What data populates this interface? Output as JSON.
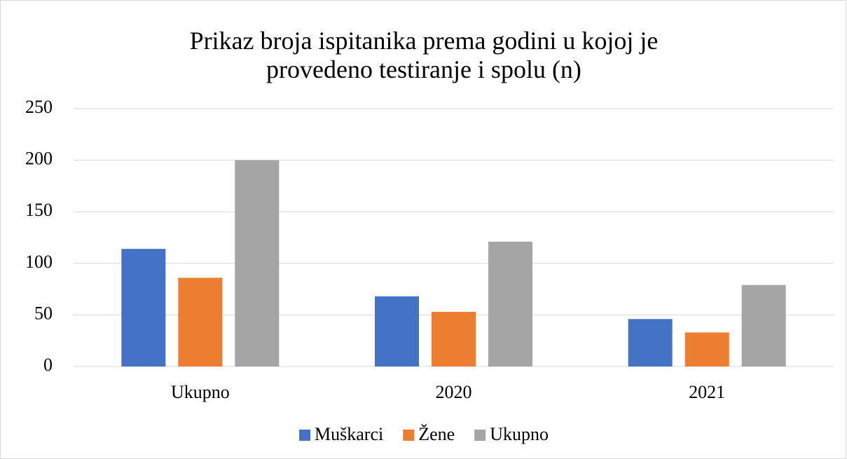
{
  "chart_data": {
    "type": "bar",
    "title": "Prikaz broja ispitanika prema godini u kojoj je provedeno testiranje i spolu (n)",
    "categories": [
      "Ukupno",
      "2020",
      "2021"
    ],
    "series": [
      {
        "name": "Muškarci",
        "color": "#4472c4",
        "values": [
          114,
          68,
          46
        ]
      },
      {
        "name": "Žene",
        "color": "#ed7d31",
        "values": [
          86,
          53,
          33
        ]
      },
      {
        "name": "Ukupno",
        "color": "#a5a5a5",
        "values": [
          200,
          121,
          79
        ]
      }
    ],
    "ylim": [
      0,
      250
    ],
    "yticks": [
      0,
      50,
      100,
      150,
      200,
      250
    ],
    "grid": true,
    "legend": "bottom"
  }
}
